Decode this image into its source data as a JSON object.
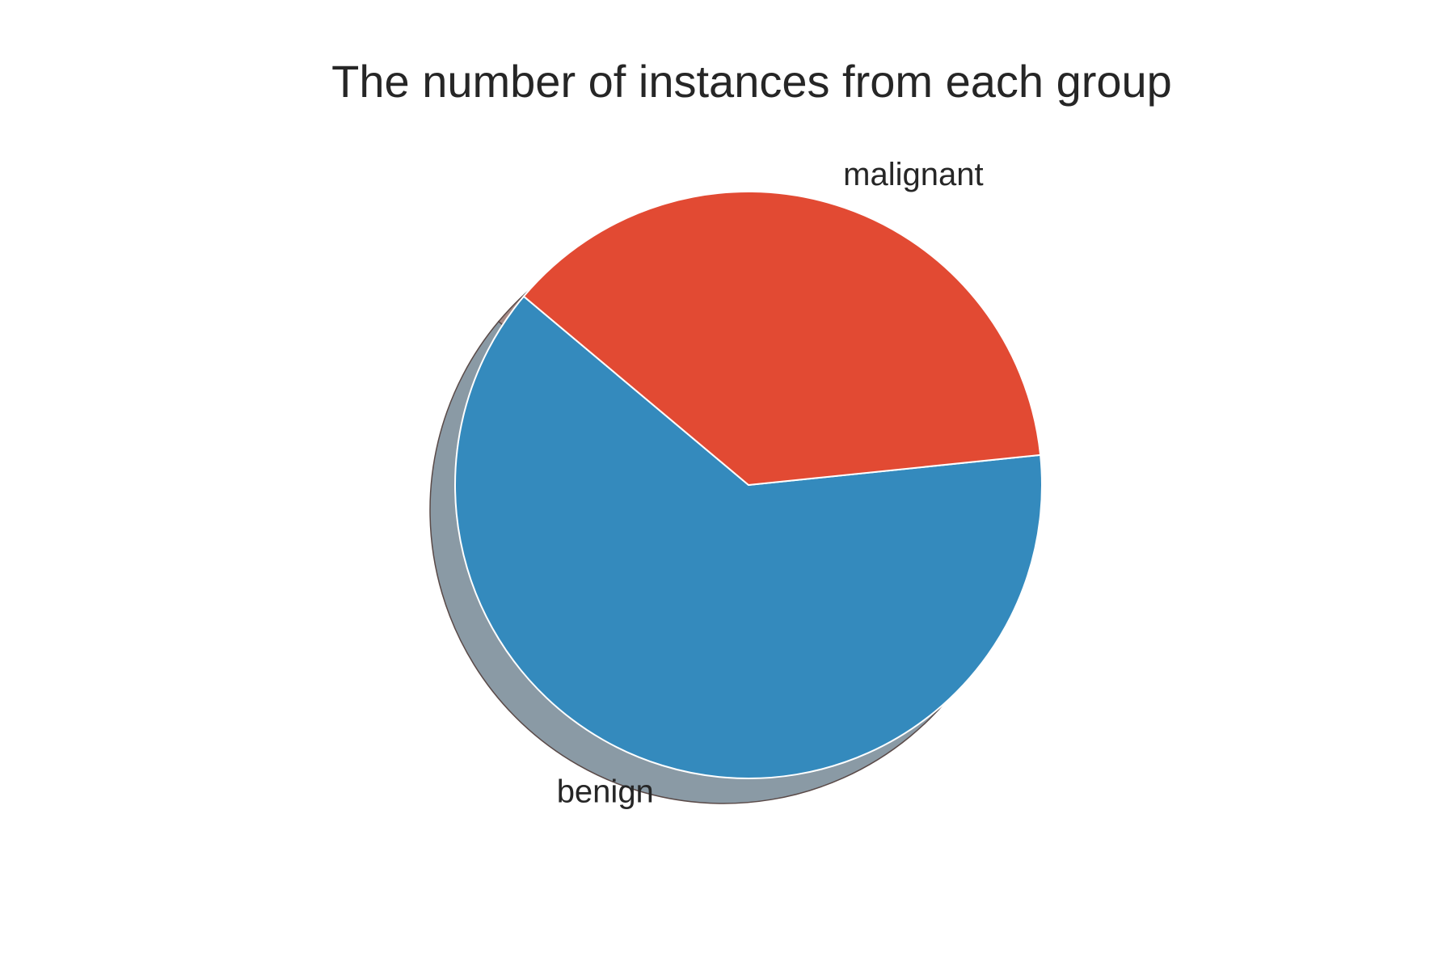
{
  "chart_data": {
    "type": "pie",
    "title": "The number of instances from each group",
    "categories": [
      "benign",
      "malignant"
    ],
    "values": [
      357,
      212
    ],
    "colors": [
      "#348abd",
      "#e24a33"
    ],
    "shadow_colors": [
      "#8a9aa5",
      "#a58a86"
    ],
    "shadow": true,
    "start_angle_deg": 140,
    "legend": "none"
  }
}
